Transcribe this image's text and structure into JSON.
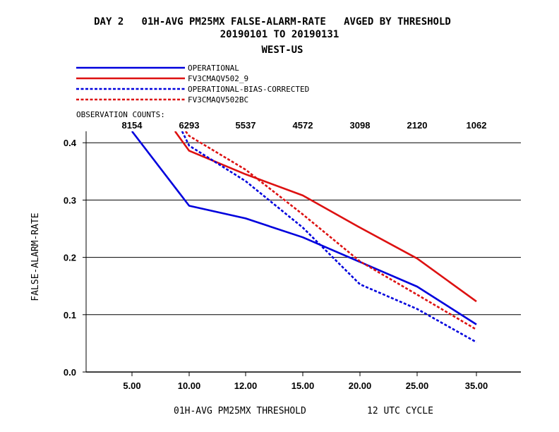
{
  "header": {
    "title_line1": "DAY 2   01H-AVG PM25MX FALSE-ALARM-RATE   AVGED BY THRESHOLD",
    "title_line2": "20190101 TO 20190131",
    "title_line3": "WEST-US"
  },
  "legend": {
    "placement": "top-left"
  },
  "observation_counts_label": "OBSERVATION COUNTS:",
  "footer": {
    "xlabel_left": "01H-AVG PM25MX THRESHOLD",
    "xlabel_right": "12 UTC CYCLE"
  },
  "colors": {
    "blue": "#0000dd",
    "red": "#dd1111",
    "axis": "#000000"
  },
  "chart_data": {
    "type": "line",
    "title": "DAY 2   01H-AVG PM25MX FALSE-ALARM-RATE   AVGED BY THRESHOLD",
    "ylabel": "FALSE-ALARM-RATE",
    "xlabel": "01H-AVG PM25MX THRESHOLD",
    "categories": [
      "5.00",
      "10.00",
      "12.00",
      "15.00",
      "20.00",
      "25.00",
      "35.00"
    ],
    "observation_counts": [
      "8154",
      "6293",
      "5537",
      "4572",
      "3098",
      "2120",
      "1062"
    ],
    "ylim": [
      0.0,
      0.42
    ],
    "yticks": [
      "0.0",
      "0.1",
      "0.2",
      "0.3",
      "0.4"
    ],
    "ytick_values": [
      0.0,
      0.1,
      0.2,
      0.3,
      0.4
    ],
    "grid": "horizontal",
    "series": [
      {
        "name": "OPERATIONAL",
        "color": "#0000dd",
        "dash": "solid",
        "values": [
          0.42,
          0.29,
          0.268,
          0.235,
          0.192,
          0.149,
          0.083
        ]
      },
      {
        "name": "FV3CMAQV502_9",
        "color": "#dd1111",
        "dash": "solid",
        "values": [
          null,
          0.386,
          0.345,
          0.308,
          0.252,
          0.198,
          0.123
        ]
      },
      {
        "name": "OPERATIONAL-BIAS-CORRECTED",
        "color": "#0000dd",
        "dash": "dashed",
        "values": [
          null,
          0.395,
          0.333,
          0.252,
          0.153,
          0.11,
          0.052
        ]
      },
      {
        "name": "FV3CMAQV502BC",
        "color": "#dd1111",
        "dash": "dashed",
        "values": [
          null,
          0.412,
          0.353,
          0.275,
          0.193,
          0.135,
          0.074
        ]
      }
    ]
  }
}
